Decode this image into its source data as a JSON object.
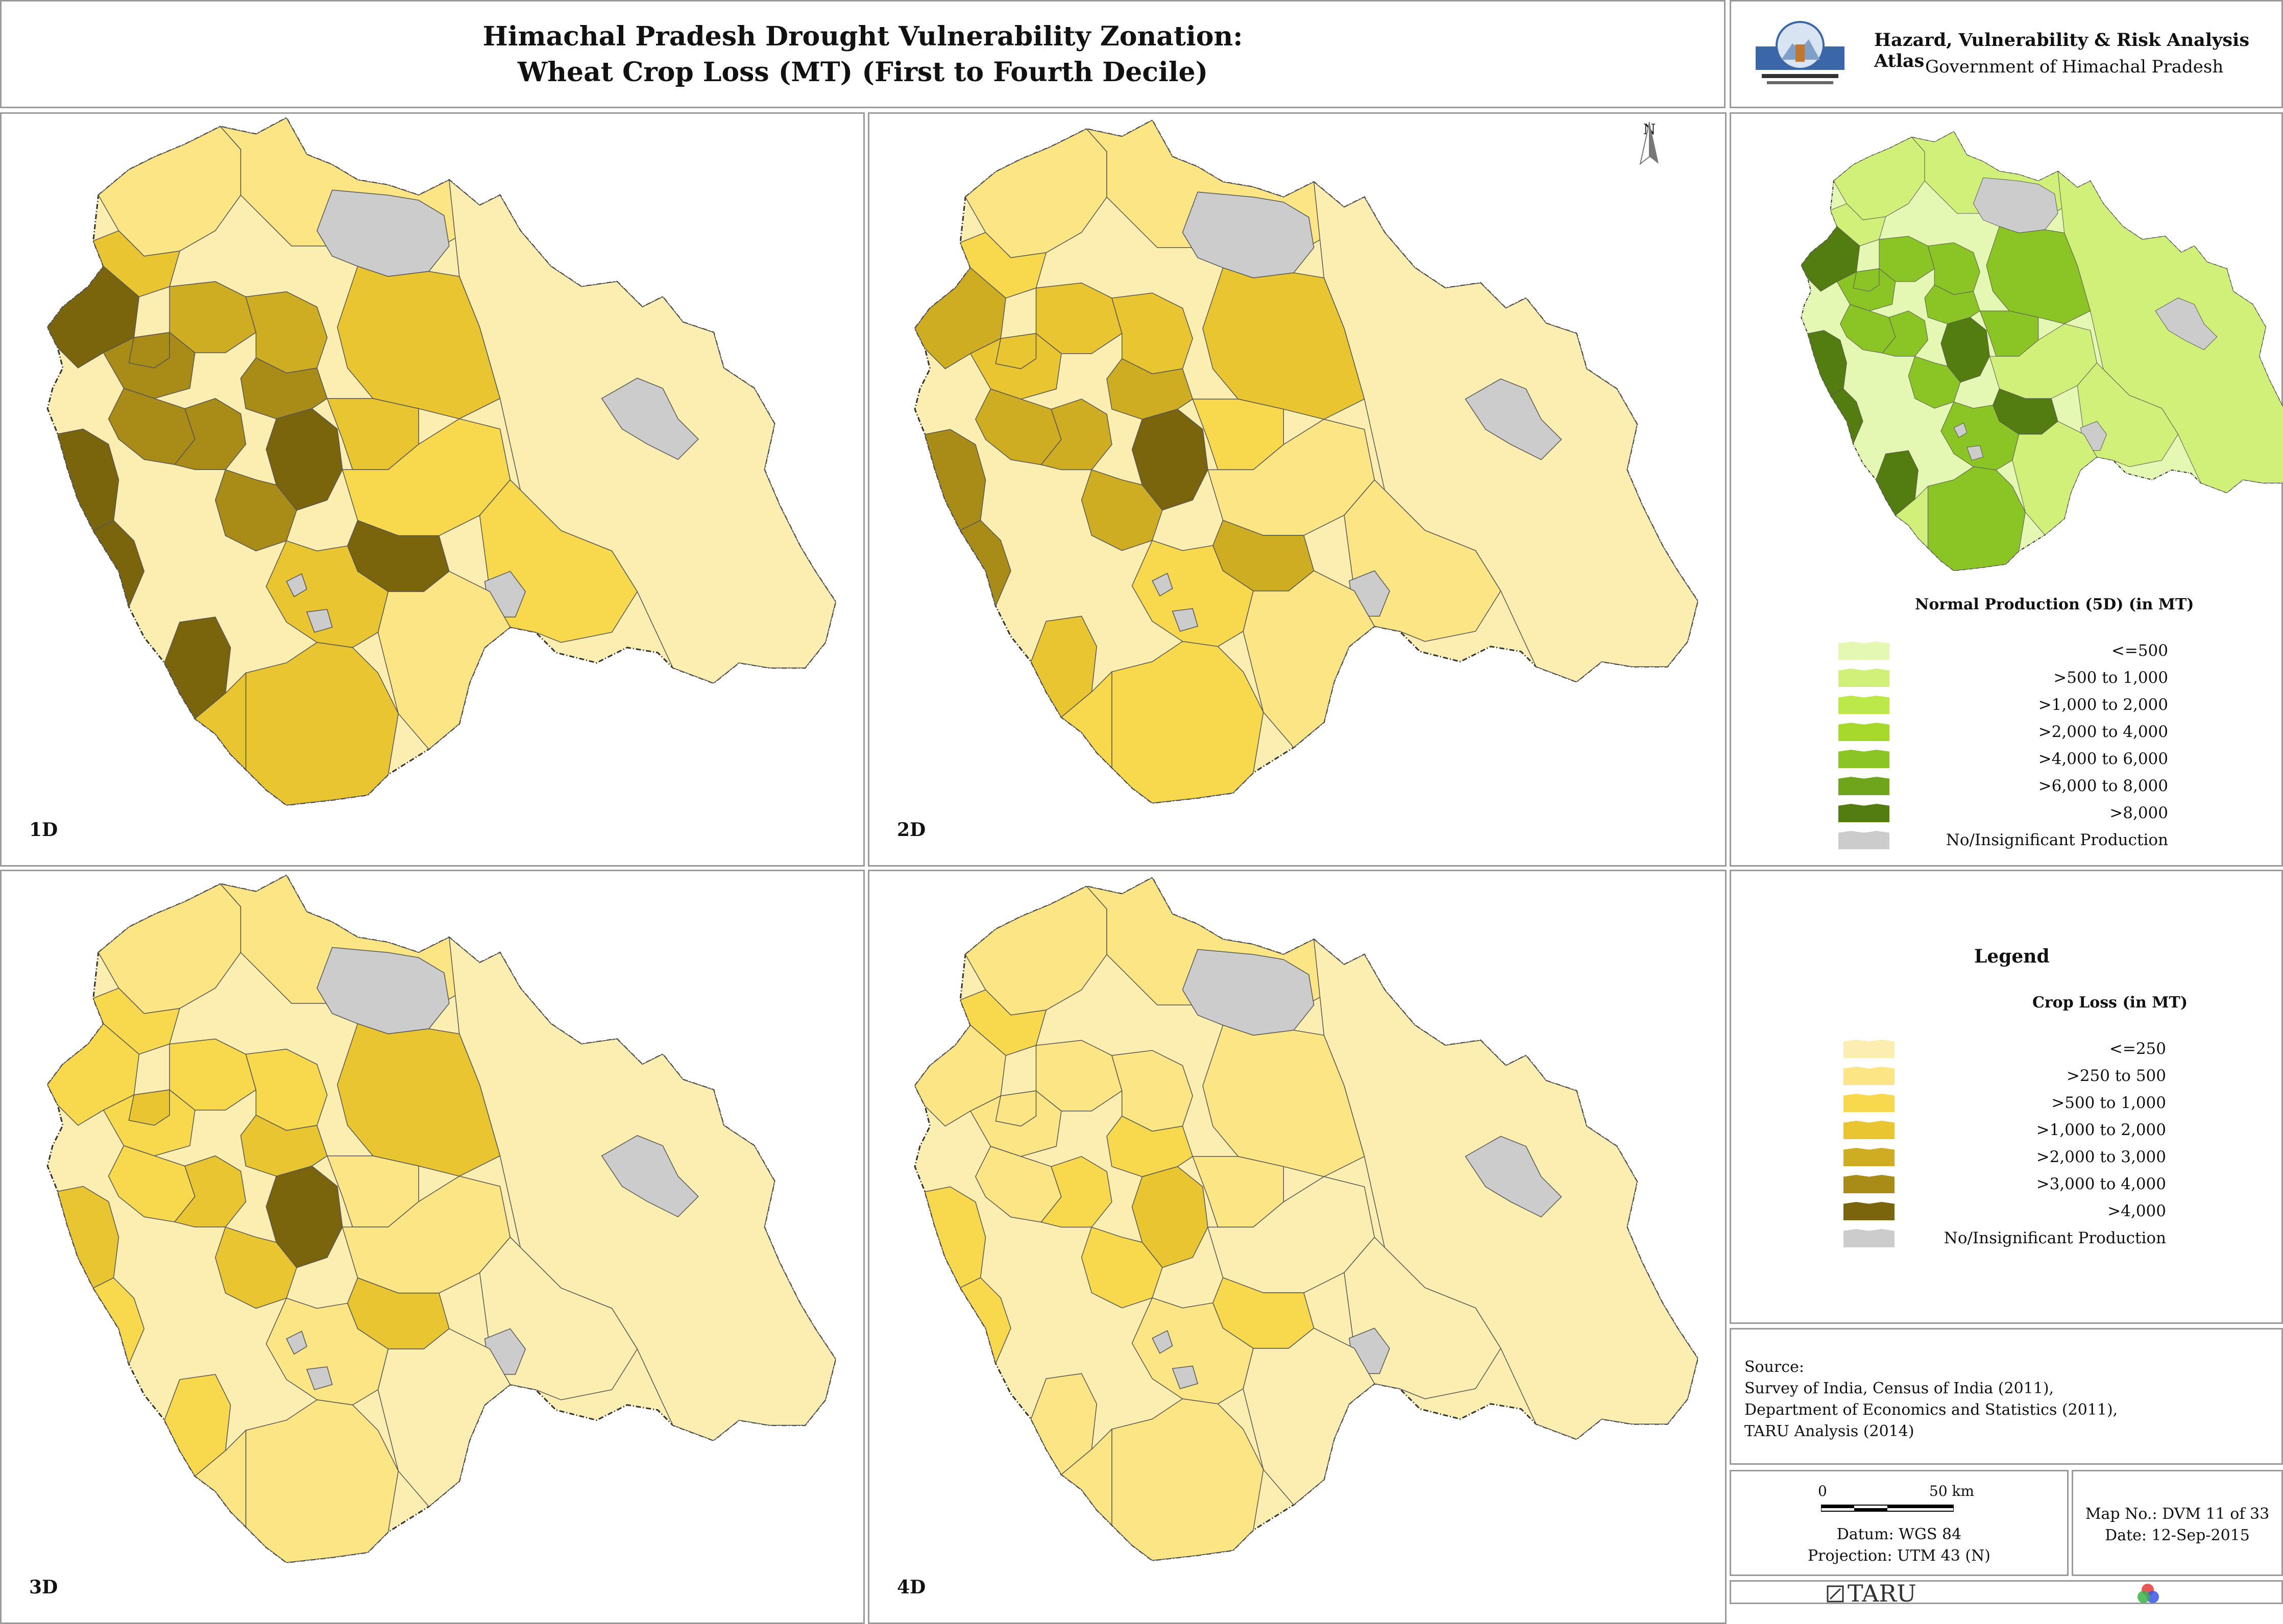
{
  "title": {
    "line1": "Himachal Pradesh Drought Vulnerability Zonation:",
    "line2": "Wheat Crop Loss (MT) (First to Fourth Decile)"
  },
  "atlas": {
    "title": "Hazard, Vulnerability & Risk Analysis Atlas",
    "subtitle": "Government of Himachal Pradesh"
  },
  "panels": [
    {
      "label": "1D",
      "level": 4
    },
    {
      "label": "2D",
      "level": 3
    },
    {
      "label": "3D",
      "level": 2
    },
    {
      "label": "4D",
      "level": 1
    }
  ],
  "north_label": "N",
  "production_legend": {
    "title": "Normal Production (5D) (in MT)",
    "items": [
      {
        "label": "<=500",
        "color": "#e4f7b3"
      },
      {
        "label": ">500 to 1,000",
        "color": "#d0f07a"
      },
      {
        "label": ">1,000 to 2,000",
        "color": "#bce84a"
      },
      {
        "label": ">2,000 to 4,000",
        "color": "#a6d92c"
      },
      {
        "label": ">4,000 to 6,000",
        "color": "#8bc425"
      },
      {
        "label": ">6,000 to 8,000",
        "color": "#6ea51c"
      },
      {
        "label": ">8,000",
        "color": "#537d10"
      },
      {
        "label": "No/Insignificant Production",
        "color": "#cccccc"
      }
    ]
  },
  "crop_loss_legend": {
    "heading": "Legend",
    "title": "Crop Loss (in MT)",
    "items": [
      {
        "label": "<=250",
        "color": "#fbeeb0"
      },
      {
        "label": ">250 to 500",
        "color": "#fbe584"
      },
      {
        "label": ">500 to 1,000",
        "color": "#f8d84c"
      },
      {
        "label": ">1,000 to 2,000",
        "color": "#e9c531"
      },
      {
        "label": ">2,000 to 3,000",
        "color": "#cfad22"
      },
      {
        "label": ">3,000 to 4,000",
        "color": "#a98b17"
      },
      {
        "label": ">4,000",
        "color": "#7a650c"
      },
      {
        "label": "No/Insignificant Production",
        "color": "#cccccc"
      }
    ]
  },
  "source": {
    "heading": "Source:",
    "lines": [
      "Survey of India, Census of India (2011),",
      "Department of Economics and Statistics (2011),",
      "TARU Analysis (2014)"
    ]
  },
  "scale": {
    "zero": "0",
    "distance": "50 km",
    "datum": "Datum: WGS 84",
    "projection": "Projection: UTM 43 (N)"
  },
  "map_info": {
    "number": "Map No.: DVM 11 of 33",
    "date": "Date: 12-Sep-2015"
  },
  "footer": {
    "brand": "TARU"
  }
}
